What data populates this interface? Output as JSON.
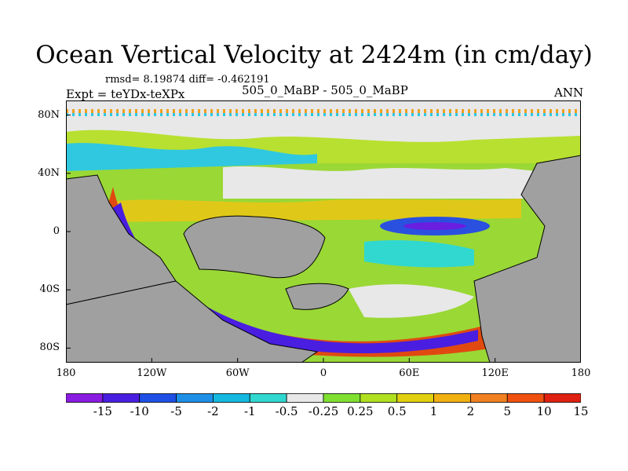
{
  "title": "Ocean Vertical Velocity at 2424m (in cm/day)",
  "stats": "rmsd= 8.19874 diff= -0.462191",
  "experiment": "Expt = teYDx-teXPx",
  "cases": "505_0_MaBP - 505_0_MaBP",
  "season": "ANN",
  "map": {
    "lat_ticks": [
      {
        "lat": 80,
        "label": "80N"
      },
      {
        "lat": 40,
        "label": "40N"
      },
      {
        "lat": 0,
        "label": "0"
      },
      {
        "lat": -40,
        "label": "40S"
      },
      {
        "lat": -80,
        "label": "80S"
      }
    ],
    "lon_ticks": [
      {
        "lon": -180,
        "label": "180"
      },
      {
        "lon": -120,
        "label": "120W"
      },
      {
        "lon": -60,
        "label": "60W"
      },
      {
        "lon": 0,
        "label": "0"
      },
      {
        "lon": 60,
        "label": "60E"
      },
      {
        "lon": 120,
        "label": "120E"
      },
      {
        "lon": 180,
        "label": "180"
      }
    ],
    "lon_range": [
      -180,
      180
    ],
    "lat_range": [
      -90,
      90
    ],
    "land_color": "#a0a0a0"
  },
  "colorbar": {
    "colors": [
      "#8a1be0",
      "#4a1ee0",
      "#1e50e6",
      "#1e8fe6",
      "#14b8e0",
      "#30d8d0",
      "#e8e8e8",
      "#80e030",
      "#b0e020",
      "#e0d010",
      "#f0b010",
      "#f08020",
      "#f05010",
      "#e02010"
    ],
    "labels": [
      "-15",
      "-10",
      "-5",
      "-2",
      "-1",
      "-0.5",
      "-0.25",
      "0.25",
      "0.5",
      "1",
      "2",
      "5",
      "10",
      "15"
    ]
  }
}
